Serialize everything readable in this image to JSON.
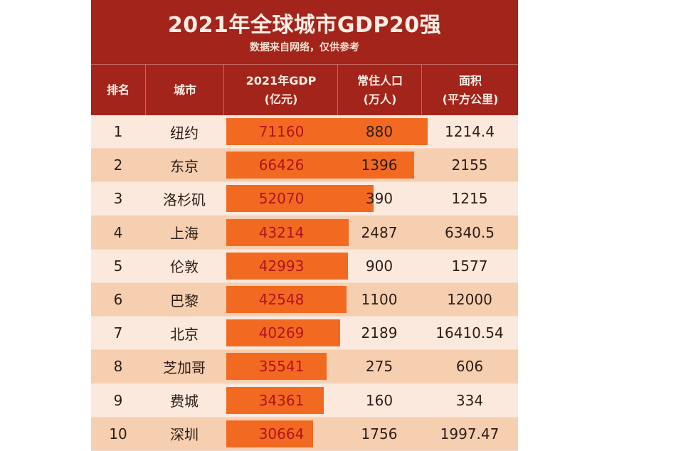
{
  "header": {
    "title": "2021年全球城市GDP20强",
    "subtitle": "数据来自网络，仅供参考"
  },
  "table": {
    "columns": [
      {
        "line1": "排名",
        "line2": ""
      },
      {
        "line1": "城市",
        "line2": ""
      },
      {
        "line1": "2021年GDP",
        "line2": "(亿元)"
      },
      {
        "line1": "常住人口",
        "line2": "(万人)"
      },
      {
        "line1": "面积",
        "line2": "(平方公里)"
      }
    ],
    "rows": [
      {
        "rank": "1",
        "city": "纽约",
        "gdp": "71160",
        "population": "880",
        "area": "1214.4"
      },
      {
        "rank": "2",
        "city": "东京",
        "gdp": "66426",
        "population": "1396",
        "area": "2155"
      },
      {
        "rank": "3",
        "city": "洛杉矶",
        "gdp": "52070",
        "population": "390",
        "area": "1215"
      },
      {
        "rank": "4",
        "city": "上海",
        "gdp": "43214",
        "population": "2487",
        "area": "6340.5"
      },
      {
        "rank": "5",
        "city": "伦敦",
        "gdp": "42993",
        "population": "900",
        "area": "1577"
      },
      {
        "rank": "6",
        "city": "巴黎",
        "gdp": "42548",
        "population": "1100",
        "area": "12000"
      },
      {
        "rank": "7",
        "city": "北京",
        "gdp": "40269",
        "population": "2189",
        "area": "16410.54"
      },
      {
        "rank": "8",
        "city": "芝加哥",
        "gdp": "35541",
        "population": "275",
        "area": "606"
      },
      {
        "rank": "9",
        "city": "费城",
        "gdp": "34361",
        "population": "160",
        "area": "334"
      },
      {
        "rank": "10",
        "city": "深圳",
        "gdp": "30664",
        "population": "1756",
        "area": "1997.47"
      }
    ]
  },
  "colors": {
    "header_bg": "#a3241a",
    "bar": "#f26a22",
    "gdp_text": "#b3121c",
    "row_light": "#fbe9dd",
    "row_dark": "#f6cfb0"
  },
  "chart_data": {
    "type": "table",
    "title": "2021年全球城市GDP20强",
    "subtitle": "数据来自网络，仅供参考",
    "columns": [
      "排名",
      "城市",
      "2021年GDP (亿元)",
      "常住人口 (万人)",
      "面积 (平方公里)"
    ],
    "categories": [
      "纽约",
      "东京",
      "洛杉矶",
      "上海",
      "伦敦",
      "巴黎",
      "北京",
      "芝加哥",
      "费城",
      "深圳"
    ],
    "gdp": [
      71160,
      66426,
      52070,
      43214,
      42993,
      42548,
      40269,
      35541,
      34361,
      30664
    ],
    "population": [
      880,
      1396,
      390,
      2487,
      900,
      1100,
      2189,
      275,
      160,
      1756
    ],
    "area": [
      1214.4,
      2155,
      1215,
      6340.5,
      1577,
      12000,
      16410.54,
      606,
      334,
      1997.47
    ]
  }
}
